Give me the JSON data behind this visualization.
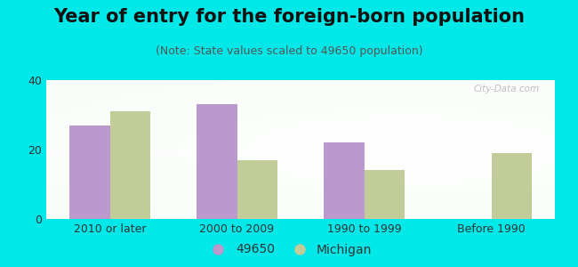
{
  "title": "Year of entry for the foreign-born population",
  "subtitle": "(Note: State values scaled to 49650 population)",
  "categories": [
    "2010 or later",
    "2000 to 2009",
    "1990 to 1999",
    "Before 1990"
  ],
  "series_49650": [
    27,
    33,
    22,
    0
  ],
  "series_michigan": [
    31,
    17,
    14,
    19
  ],
  "color_49650": "#bb99cc",
  "color_michigan": "#c2cc99",
  "legend_49650": "49650",
  "legend_michigan": "Michigan",
  "ylim": [
    0,
    40
  ],
  "yticks": [
    0,
    20,
    40
  ],
  "background_color": "#00e8e8",
  "bar_width": 0.32,
  "title_fontsize": 15,
  "subtitle_fontsize": 9,
  "tick_fontsize": 9,
  "legend_fontsize": 10
}
